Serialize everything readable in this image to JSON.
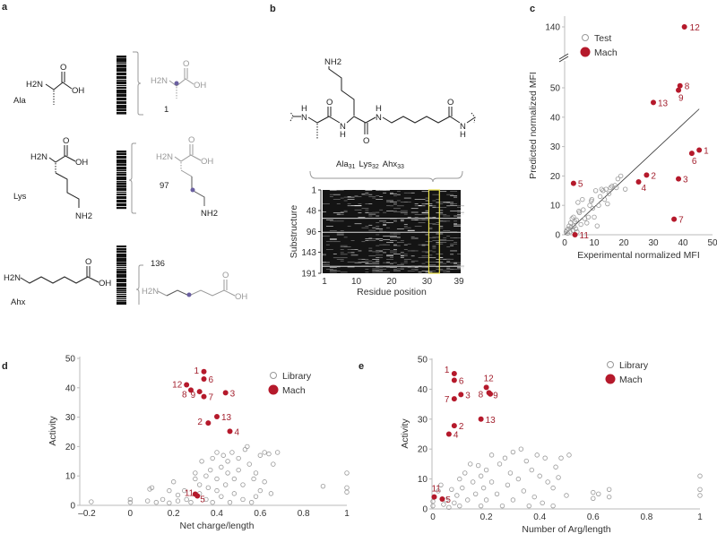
{
  "panel_a": {
    "label": "a",
    "rows": [
      {
        "name": "Ala",
        "count": "1"
      },
      {
        "name": "Lys",
        "count": "97"
      },
      {
        "name": "Ahx",
        "count": "136"
      }
    ],
    "atoms": {
      "amine": "H2N",
      "nh2": "NH2",
      "oh": "OH",
      "o": "O"
    },
    "highlight_color": "#6a5fa0"
  },
  "panel_b": {
    "label": "b",
    "atoms": {
      "nh2": "NH2",
      "n": "N",
      "h": "H",
      "o": "O"
    },
    "residues": [
      {
        "name": "Ala",
        "index": "31"
      },
      {
        "name": "Lys",
        "index": "32"
      },
      {
        "name": "Ahx",
        "index": "33"
      }
    ],
    "highlight_color": "#e8e04a"
  },
  "panel_c": {
    "label": "c"
  },
  "panel_d": {
    "label": "d"
  },
  "panel_e": {
    "label": "e"
  },
  "colors": {
    "mach": "#b5192b",
    "library": "#999999",
    "text": "#a3202e"
  },
  "chart_data": [
    {
      "id": "b",
      "type": "heatmap",
      "xlabel": "Residue position",
      "ylabel": "Substructure",
      "xticks": [
        "1",
        "10",
        "20",
        "30",
        "39"
      ],
      "yticks": [
        "1",
        "48",
        "96",
        "143",
        "191"
      ],
      "xlim": [
        1,
        39
      ],
      "ylim": [
        1,
        191
      ],
      "highlight_columns": [
        31,
        33
      ]
    },
    {
      "id": "c",
      "type": "scatter",
      "xlabel": "Experimental normalized MFI",
      "ylabel": "Predicted normalized MFI",
      "xlim": [
        0,
        50
      ],
      "ylim": [
        0,
        140
      ],
      "y_axis_break": [
        55,
        130
      ],
      "xticks": [
        "0",
        "10",
        "20",
        "30",
        "40",
        "50"
      ],
      "yticks": [
        "0",
        "10",
        "20",
        "30",
        "40",
        "50",
        "140"
      ],
      "legend": {
        "position": "top-left",
        "entries": [
          "Test",
          "Mach"
        ]
      },
      "fit_line": [
        [
          0,
          0
        ],
        [
          45.5,
          42.8
        ]
      ],
      "series": [
        {
          "name": "Test",
          "style": "open",
          "points": [
            [
              0.5,
              1
            ],
            [
              0.8,
              1.5
            ],
            [
              1,
              0.5
            ],
            [
              1.2,
              2
            ],
            [
              1.5,
              3
            ],
            [
              1.8,
              1
            ],
            [
              2,
              4
            ],
            [
              2.2,
              2.5
            ],
            [
              2.5,
              5.5
            ],
            [
              2.8,
              1.5
            ],
            [
              3,
              6
            ],
            [
              3.2,
              3
            ],
            [
              3.5,
              4.5
            ],
            [
              3.8,
              2
            ],
            [
              4,
              5
            ],
            [
              4.2,
              1
            ],
            [
              4.5,
              11
            ],
            [
              4.8,
              8
            ],
            [
              5,
              7.5
            ],
            [
              5.5,
              3.5
            ],
            [
              6,
              12
            ],
            [
              6.3,
              8.5
            ],
            [
              6.8,
              5.5
            ],
            [
              7.5,
              4
            ],
            [
              8,
              6
            ],
            [
              8.5,
              10
            ],
            [
              9,
              11.5
            ],
            [
              9.2,
              12
            ],
            [
              9.5,
              9
            ],
            [
              10,
              6
            ],
            [
              10.5,
              15
            ],
            [
              11,
              3
            ],
            [
              11.5,
              10
            ],
            [
              12,
              13
            ],
            [
              12.5,
              15.5
            ],
            [
              13,
              15
            ],
            [
              13.5,
              12
            ],
            [
              14,
              15.5
            ],
            [
              14.5,
              10.5
            ],
            [
              15,
              14
            ],
            [
              15.5,
              16
            ],
            [
              16,
              16.5
            ],
            [
              17,
              16.8
            ],
            [
              17.5,
              16
            ],
            [
              18,
              19
            ],
            [
              19,
              20
            ],
            [
              20.5,
              15.5
            ]
          ]
        },
        {
          "name": "Mach",
          "style": "filled",
          "points": [
            {
              "label": "1",
              "x": 45.5,
              "y": 28.8
            },
            {
              "label": "2",
              "x": 27.7,
              "y": 20.3
            },
            {
              "label": "3",
              "x": 38.5,
              "y": 19
            },
            {
              "label": "4",
              "x": 25,
              "y": 18
            },
            {
              "label": "5",
              "x": 3,
              "y": 17.5
            },
            {
              "label": "6",
              "x": 43,
              "y": 27.7
            },
            {
              "label": "7",
              "x": 37,
              "y": 5.3
            },
            {
              "label": "8",
              "x": 39,
              "y": 50.7
            },
            {
              "label": "9",
              "x": 38.5,
              "y": 49.2
            },
            {
              "label": "11",
              "x": 3.5,
              "y": 0
            },
            {
              "label": "12",
              "x": 40.5,
              "y": 140
            },
            {
              "label": "13",
              "x": 30,
              "y": 45
            }
          ]
        }
      ]
    },
    {
      "id": "d",
      "type": "scatter",
      "xlabel": "Net charge/length",
      "ylabel": "Activity",
      "xlim": [
        -0.2,
        1
      ],
      "ylim": [
        0,
        50
      ],
      "xticks": [
        "–0.2",
        "0",
        "0.2",
        "0.4",
        "0.6",
        "0.8",
        "1"
      ],
      "yticks": [
        "0",
        "10",
        "20",
        "30",
        "40",
        "50"
      ],
      "legend": {
        "position": "top-right",
        "entries": [
          "Library",
          "Mach"
        ]
      },
      "series": [
        {
          "name": "Library",
          "style": "open",
          "points": [
            [
              -0.18,
              1.2
            ],
            [
              0,
              1
            ],
            [
              0,
              2
            ],
            [
              0.08,
              1.5
            ],
            [
              0.09,
              5.5
            ],
            [
              0.1,
              6
            ],
            [
              0.12,
              1
            ],
            [
              0.15,
              2
            ],
            [
              0.18,
              0.8
            ],
            [
              0.18,
              5
            ],
            [
              0.2,
              8
            ],
            [
              0.22,
              1.5
            ],
            [
              0.22,
              3.5
            ],
            [
              0.25,
              5
            ],
            [
              0.26,
              2
            ],
            [
              0.28,
              1
            ],
            [
              0.3,
              9
            ],
            [
              0.3,
              11
            ],
            [
              0.32,
              4
            ],
            [
              0.32,
              7
            ],
            [
              0.33,
              15
            ],
            [
              0.35,
              2
            ],
            [
              0.35,
              10
            ],
            [
              0.36,
              6
            ],
            [
              0.37,
              12
            ],
            [
              0.38,
              1
            ],
            [
              0.38,
              16
            ],
            [
              0.4,
              5
            ],
            [
              0.4,
              9
            ],
            [
              0.4,
              18
            ],
            [
              0.42,
              3
            ],
            [
              0.42,
              13
            ],
            [
              0.43,
              17
            ],
            [
              0.44,
              7
            ],
            [
              0.45,
              11
            ],
            [
              0.45,
              15
            ],
            [
              0.46,
              1
            ],
            [
              0.47,
              18
            ],
            [
              0.48,
              4
            ],
            [
              0.48,
              9
            ],
            [
              0.5,
              12
            ],
            [
              0.5,
              16
            ],
            [
              0.52,
              2
            ],
            [
              0.52,
              7
            ],
            [
              0.53,
              19
            ],
            [
              0.54,
              20
            ],
            [
              0.55,
              14
            ],
            [
              0.56,
              1
            ],
            [
              0.57,
              9
            ],
            [
              0.58,
              11
            ],
            [
              0.58,
              3
            ],
            [
              0.6,
              17
            ],
            [
              0.6,
              5
            ],
            [
              0.62,
              8
            ],
            [
              0.62,
              18
            ],
            [
              0.64,
              17.5
            ],
            [
              0.65,
              4
            ],
            [
              0.66,
              14
            ],
            [
              0.68,
              18
            ],
            [
              0.89,
              6.5
            ],
            [
              1,
              11
            ],
            [
              1,
              6
            ],
            [
              1,
              4.5
            ]
          ]
        },
        {
          "name": "Mach",
          "style": "filled",
          "points": [
            {
              "label": "1",
              "x": 0.34,
              "y": 45.5
            },
            {
              "label": "6",
              "x": 0.34,
              "y": 43
            },
            {
              "label": "12",
              "x": 0.26,
              "y": 41
            },
            {
              "label": "8",
              "x": 0.28,
              "y": 39.2
            },
            {
              "label": "9",
              "x": 0.32,
              "y": 38.7
            },
            {
              "label": "7",
              "x": 0.34,
              "y": 37
            },
            {
              "label": "3",
              "x": 0.44,
              "y": 38.3
            },
            {
              "label": "13",
              "x": 0.4,
              "y": 30.2
            },
            {
              "label": "2",
              "x": 0.36,
              "y": 28
            },
            {
              "label": "4",
              "x": 0.46,
              "y": 25.2
            },
            {
              "label": "11",
              "x": 0.3,
              "y": 3.8
            },
            {
              "label": "5",
              "x": 0.31,
              "y": 3.2
            }
          ]
        }
      ]
    },
    {
      "id": "e",
      "type": "scatter",
      "xlabel": "Number of Arg/length",
      "ylabel": "Activity",
      "xlim": [
        0,
        1
      ],
      "ylim": [
        0,
        50
      ],
      "xticks": [
        "0",
        "0.2",
        "0.4",
        "0.6",
        "0.8",
        "1"
      ],
      "yticks": [
        "0",
        "10",
        "20",
        "30",
        "40",
        "50"
      ],
      "legend": {
        "position": "top-right",
        "entries": [
          "Library",
          "Mach"
        ]
      },
      "series": [
        {
          "name": "Library",
          "style": "open",
          "points": [
            [
              0,
              1
            ],
            [
              0,
              2.5
            ],
            [
              0.02,
              6
            ],
            [
              0.03,
              8
            ],
            [
              0.04,
              1.5
            ],
            [
              0.05,
              3
            ],
            [
              0.06,
              0.5
            ],
            [
              0.07,
              6.5
            ],
            [
              0.08,
              2
            ],
            [
              0.09,
              4.5
            ],
            [
              0.1,
              10
            ],
            [
              0.1,
              1
            ],
            [
              0.11,
              7
            ],
            [
              0.12,
              12
            ],
            [
              0.13,
              3
            ],
            [
              0.14,
              15
            ],
            [
              0.15,
              9
            ],
            [
              0.16,
              5
            ],
            [
              0.17,
              14.5
            ],
            [
              0.18,
              1
            ],
            [
              0.18,
              11
            ],
            [
              0.19,
              7
            ],
            [
              0.2,
              13
            ],
            [
              0.2,
              3
            ],
            [
              0.22,
              9
            ],
            [
              0.22,
              18
            ],
            [
              0.24,
              5
            ],
            [
              0.25,
              15
            ],
            [
              0.26,
              1
            ],
            [
              0.27,
              17
            ],
            [
              0.28,
              8
            ],
            [
              0.29,
              12
            ],
            [
              0.3,
              19
            ],
            [
              0.3,
              3
            ],
            [
              0.32,
              10
            ],
            [
              0.33,
              20
            ],
            [
              0.34,
              6
            ],
            [
              0.35,
              16
            ],
            [
              0.36,
              1
            ],
            [
              0.37,
              13
            ],
            [
              0.38,
              4
            ],
            [
              0.39,
              18
            ],
            [
              0.4,
              11
            ],
            [
              0.41,
              2
            ],
            [
              0.42,
              17
            ],
            [
              0.43,
              9
            ],
            [
              0.45,
              7
            ],
            [
              0.45,
              1
            ],
            [
              0.46,
              14
            ],
            [
              0.47,
              10.5
            ],
            [
              0.48,
              17
            ],
            [
              0.51,
              18
            ],
            [
              0.5,
              4.5
            ],
            [
              0.6,
              5.5
            ],
            [
              0.6,
              3.5
            ],
            [
              0.62,
              5
            ],
            [
              0.66,
              6.5
            ],
            [
              0.66,
              4
            ],
            [
              1,
              11
            ],
            [
              1,
              6.5
            ],
            [
              1,
              4.5
            ]
          ]
        },
        {
          "name": "Mach",
          "style": "filled",
          "points": [
            {
              "label": "1",
              "x": 0.08,
              "y": 45.2
            },
            {
              "label": "6",
              "x": 0.08,
              "y": 43
            },
            {
              "label": "3",
              "x": 0.105,
              "y": 38.2
            },
            {
              "label": "7",
              "x": 0.08,
              "y": 36.8
            },
            {
              "label": "12",
              "x": 0.2,
              "y": 40.6
            },
            {
              "label": "8",
              "x": 0.21,
              "y": 38.8
            },
            {
              "label": "9",
              "x": 0.215,
              "y": 38.4
            },
            {
              "label": "13",
              "x": 0.18,
              "y": 30
            },
            {
              "label": "2",
              "x": 0.08,
              "y": 27.8
            },
            {
              "label": "4",
              "x": 0.06,
              "y": 25
            },
            {
              "label": "11",
              "x": 0.005,
              "y": 4
            },
            {
              "label": "5",
              "x": 0.035,
              "y": 3.3
            }
          ]
        }
      ]
    }
  ]
}
